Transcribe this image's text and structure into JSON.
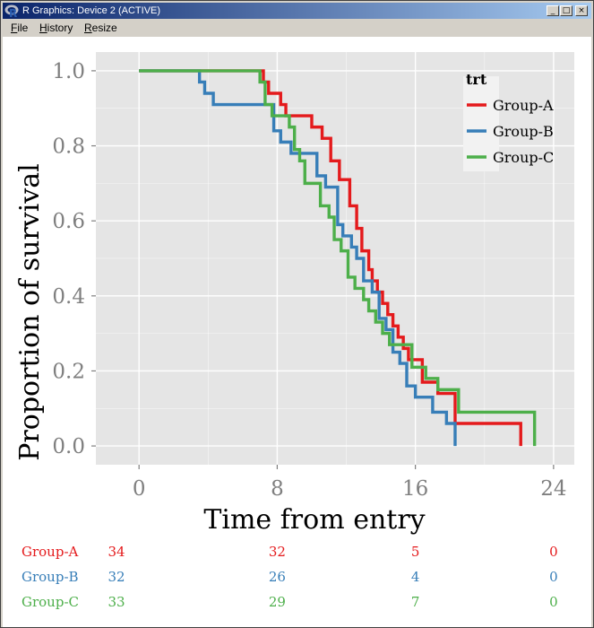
{
  "window": {
    "title": "R Graphics: Device 2 (ACTIVE)",
    "logo_text": "R",
    "buttons": {
      "minimize": "_",
      "maximize": "□",
      "close": "×"
    }
  },
  "menu": {
    "items": [
      {
        "label": "File"
      },
      {
        "label": "History"
      },
      {
        "label": "Resize"
      }
    ]
  },
  "colors": {
    "group_a": "#e41a1c",
    "group_b": "#377eb8",
    "group_c": "#4daf4a",
    "panel_bg": "#e5e5e5",
    "grid": "#ffffff"
  },
  "chart_data": {
    "type": "line",
    "subtype": "kaplan-meier step",
    "xlabel": "Time from entry",
    "ylabel": "Proportion of survival",
    "xlim": [
      -2.5,
      25.2
    ],
    "ylim": [
      -0.05,
      1.05
    ],
    "x_ticks": [
      0,
      8,
      16,
      24
    ],
    "y_ticks": [
      0.0,
      0.2,
      0.4,
      0.6,
      0.8,
      1.0
    ],
    "y_tick_labels": [
      "0.0",
      "0.2",
      "0.4",
      "0.6",
      "0.8",
      "1.0"
    ],
    "legend": {
      "title": "trt",
      "position": "top-right"
    },
    "series": [
      {
        "name": "Group-A",
        "color_key": "group_a",
        "x": [
          0,
          7,
          7.2,
          7.5,
          8.2,
          8.5,
          9.0,
          9.3,
          10.0,
          10.6,
          11.1,
          11.6,
          12.2,
          12.6,
          12.9,
          13.3,
          13.5,
          13.8,
          14.1,
          14.4,
          14.7,
          15.0,
          15.3,
          15.6,
          16.0,
          16.4,
          17.3,
          18.3,
          22.1,
          22.1
        ],
        "y": [
          1.0,
          1.0,
          0.97,
          0.94,
          0.91,
          0.88,
          0.88,
          0.88,
          0.85,
          0.82,
          0.76,
          0.71,
          0.64,
          0.58,
          0.52,
          0.47,
          0.44,
          0.41,
          0.38,
          0.35,
          0.32,
          0.29,
          0.26,
          0.23,
          0.23,
          0.17,
          0.14,
          0.06,
          0.06,
          0.0
        ]
      },
      {
        "name": "Group-B",
        "color_key": "group_b",
        "x": [
          0,
          3.5,
          3.8,
          4.3,
          7.8,
          8.2,
          8.8,
          9.3,
          10.3,
          10.8,
          11.5,
          11.8,
          12.3,
          12.6,
          13.0,
          13.5,
          13.9,
          14.3,
          14.7,
          15.1,
          15.5,
          16.0,
          17.0,
          17.8,
          18.3,
          18.3
        ],
        "y": [
          1.0,
          0.97,
          0.94,
          0.91,
          0.84,
          0.81,
          0.78,
          0.78,
          0.72,
          0.69,
          0.59,
          0.56,
          0.53,
          0.5,
          0.44,
          0.41,
          0.34,
          0.31,
          0.25,
          0.22,
          0.16,
          0.13,
          0.09,
          0.06,
          0.03,
          0.0
        ]
      },
      {
        "name": "Group-C",
        "color_key": "group_c",
        "x": [
          0,
          7.0,
          7.3,
          7.7,
          8.7,
          9.0,
          9.3,
          9.6,
          10.5,
          11.0,
          11.3,
          11.7,
          12.1,
          12.5,
          13.0,
          13.3,
          13.7,
          14.1,
          14.5,
          15.8,
          16.6,
          17.3,
          18.5,
          22.9,
          22.9
        ],
        "y": [
          1.0,
          0.97,
          0.91,
          0.88,
          0.85,
          0.79,
          0.76,
          0.7,
          0.64,
          0.61,
          0.55,
          0.52,
          0.45,
          0.42,
          0.39,
          0.36,
          0.33,
          0.3,
          0.27,
          0.21,
          0.18,
          0.15,
          0.09,
          0.04,
          0.0
        ]
      }
    ],
    "risk_table": {
      "times": [
        0,
        8,
        16,
        24
      ],
      "rows": [
        {
          "name": "Group-A",
          "color_key": "group_a",
          "counts": [
            "34",
            "32",
            "5",
            "0"
          ]
        },
        {
          "name": "Group-B",
          "color_key": "group_b",
          "counts": [
            "32",
            "26",
            "4",
            "0"
          ]
        },
        {
          "name": "Group-C",
          "color_key": "group_c",
          "counts": [
            "33",
            "29",
            "7",
            "0"
          ]
        }
      ]
    }
  }
}
